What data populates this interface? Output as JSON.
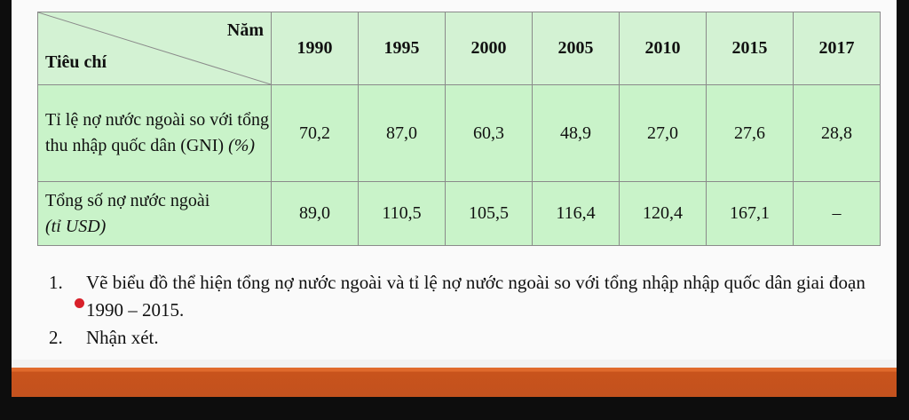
{
  "table": {
    "corner_top": "Năm",
    "corner_bottom": "Tiêu chí",
    "years": [
      "1990",
      "1995",
      "2000",
      "2005",
      "2010",
      "2015",
      "2017"
    ],
    "rows": [
      {
        "label_main": "Tỉ lệ nợ nước ngoài so với tổng thu nhập quốc dân (GNI)",
        "label_unit": "(%)",
        "values": [
          "70,2",
          "87,0",
          "60,3",
          "48,9",
          "27,0",
          "27,6",
          "28,8"
        ]
      },
      {
        "label_main": "Tổng số nợ nước ngoài",
        "label_unit": "(tỉ USD)",
        "values": [
          "89,0",
          "110,5",
          "105,5",
          "116,4",
          "120,4",
          "167,1",
          "–"
        ]
      }
    ]
  },
  "tasks": [
    {
      "num": "1.",
      "text": "Vẽ biểu đồ thể hiện tổng nợ nước ngoài và tỉ lệ nợ nước ngoài so với tổng nhập nhập quốc dân giai đoạn 1990 – 2015."
    },
    {
      "num": "2.",
      "text": "Nhận xét."
    }
  ],
  "colors": {
    "table_fill": "#c9f3c9",
    "bottom_bar": "#c8531c",
    "cursor": "#d8202a"
  }
}
